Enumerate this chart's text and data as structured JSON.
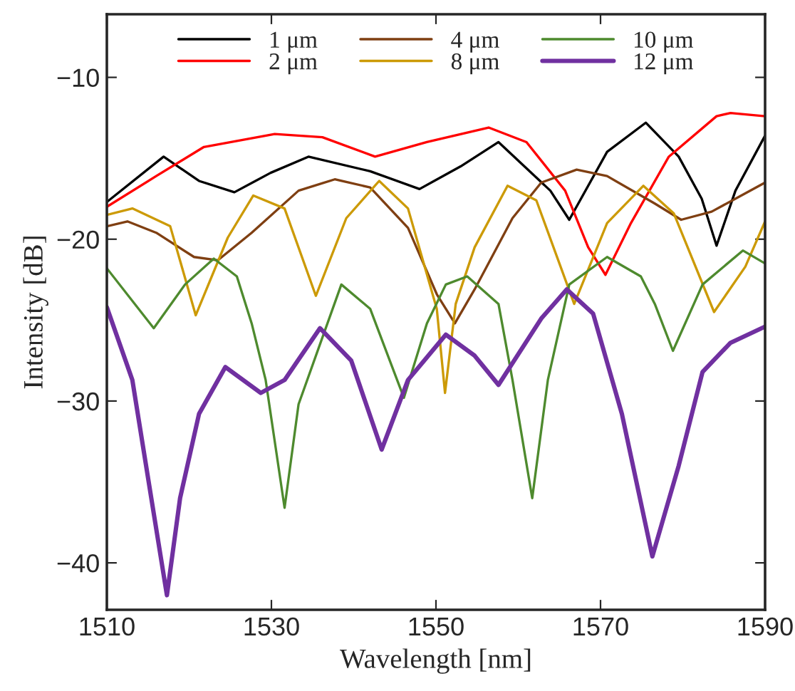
{
  "chart_data": {
    "type": "line",
    "xlabel": "Wavelength [nm]",
    "ylabel": "Intensity [dB]",
    "xlim": [
      1510,
      1590
    ],
    "xticks": [
      1510,
      1530,
      1550,
      1570,
      1590
    ],
    "ylim": [
      -42.9,
      -6.1
    ],
    "yticks": [
      {
        "value": -10,
        "label": "−10"
      },
      {
        "value": -20,
        "label": "−20"
      },
      {
        "value": -30,
        "label": "−30"
      },
      {
        "value": -40,
        "label": "−40"
      }
    ],
    "grid": false,
    "legend": "top",
    "marker": "none",
    "line_style": "solid",
    "series": [
      {
        "name": "1 μm",
        "color": "#000000",
        "x": [
          1510,
          1516.9,
          1521.2,
          1525.5,
          1529.9,
          1534.5,
          1542,
          1548,
          1553,
          1557.6,
          1563.9,
          1566.2,
          1570.8,
          1575.5,
          1579.5,
          1582.3,
          1584.1,
          1586.4,
          1590
        ],
        "values": [
          -17.7,
          -14.9,
          -16.4,
          -17.1,
          -15.9,
          -14.9,
          -15.8,
          -16.9,
          -15.5,
          -14.0,
          -17.0,
          -18.8,
          -14.6,
          -12.8,
          -14.9,
          -17.5,
          -20.4,
          -17.0,
          -13.6
        ]
      },
      {
        "name": "2 μm",
        "color": "#ff0000",
        "x": [
          1510,
          1516,
          1521.8,
          1530.4,
          1536.2,
          1542.6,
          1548.9,
          1556.4,
          1561,
          1565.7,
          1568.5,
          1570.6,
          1573.7,
          1578.3,
          1584.1,
          1585.8,
          1590
        ],
        "values": [
          -18.0,
          -16.1,
          -14.3,
          -13.5,
          -13.7,
          -14.9,
          -14.0,
          -13.1,
          -14.0,
          -17.0,
          -20.5,
          -22.2,
          -19.0,
          -14.9,
          -12.4,
          -12.2,
          -12.4
        ]
      },
      {
        "name": "4 μm",
        "color": "#7f3f12",
        "x": [
          1510,
          1512.5,
          1516,
          1520.6,
          1523.5,
          1527.6,
          1533.3,
          1537.7,
          1542,
          1546.6,
          1550.1,
          1552.3,
          1554.7,
          1559.3,
          1562.8,
          1567.1,
          1570.8,
          1576.6,
          1579.8,
          1583.5,
          1590
        ],
        "values": [
          -19.2,
          -18.9,
          -19.6,
          -21.1,
          -21.3,
          -19.6,
          -17.0,
          -16.3,
          -16.8,
          -19.3,
          -23.4,
          -25.2,
          -23.1,
          -18.7,
          -16.5,
          -15.7,
          -16.1,
          -17.8,
          -18.8,
          -18.3,
          -16.5
        ]
      },
      {
        "name": "8 μm",
        "color": "#cc9a06",
        "x": [
          1510,
          1513.1,
          1517.7,
          1520.8,
          1524.7,
          1527.8,
          1531.6,
          1535.4,
          1539.1,
          1543.1,
          1546.6,
          1550.1,
          1551.1,
          1552.4,
          1554.7,
          1558.7,
          1562.2,
          1566.8,
          1570.8,
          1575.2,
          1578.9,
          1583.8,
          1587.6,
          1590
        ],
        "values": [
          -18.5,
          -18.1,
          -19.2,
          -24.7,
          -19.9,
          -17.3,
          -18.1,
          -23.5,
          -18.7,
          -16.4,
          -18.1,
          -24.3,
          -29.5,
          -24.0,
          -20.5,
          -16.7,
          -17.6,
          -24.0,
          -19.0,
          -16.7,
          -18.4,
          -24.5,
          -21.7,
          -18.9
        ]
      },
      {
        "name": "10 μm",
        "color": "#4e8a2e",
        "x": [
          1510,
          1515.7,
          1519.5,
          1523,
          1525.8,
          1527.6,
          1529.3,
          1531.6,
          1533.3,
          1538.5,
          1542,
          1546.1,
          1548.9,
          1551.2,
          1553.8,
          1557.6,
          1559.3,
          1561.7,
          1563.6,
          1566.2,
          1570.8,
          1574.9,
          1576.6,
          1578.8,
          1582.4,
          1587.3,
          1590
        ],
        "values": [
          -21.8,
          -25.5,
          -22.8,
          -21.2,
          -22.3,
          -25.2,
          -28.7,
          -36.6,
          -30.2,
          -22.8,
          -24.3,
          -29.8,
          -25.2,
          -22.8,
          -22.3,
          -24.0,
          -28.7,
          -36.0,
          -28.7,
          -22.8,
          -21.1,
          -22.3,
          -24.0,
          -26.9,
          -22.8,
          -20.7,
          -21.5
        ]
      },
      {
        "name": "12 μm",
        "color": "#7030a0",
        "x": [
          1510,
          1513.1,
          1515.4,
          1517.3,
          1518.9,
          1521.2,
          1524.4,
          1528.7,
          1531.6,
          1535.9,
          1539.7,
          1543.4,
          1546.6,
          1551.2,
          1554.7,
          1557.6,
          1562.8,
          1565.9,
          1569.1,
          1572.6,
          1576.3,
          1579.5,
          1582.4,
          1585.8,
          1590
        ],
        "values": [
          -24.2,
          -28.7,
          -36.0,
          -42.0,
          -36.0,
          -30.8,
          -27.9,
          -29.5,
          -28.7,
          -25.5,
          -27.5,
          -33.0,
          -28.7,
          -25.9,
          -27.2,
          -29.0,
          -24.9,
          -23.1,
          -24.6,
          -30.8,
          -39.6,
          -34.0,
          -28.2,
          -26.4,
          -25.4
        ]
      }
    ]
  }
}
